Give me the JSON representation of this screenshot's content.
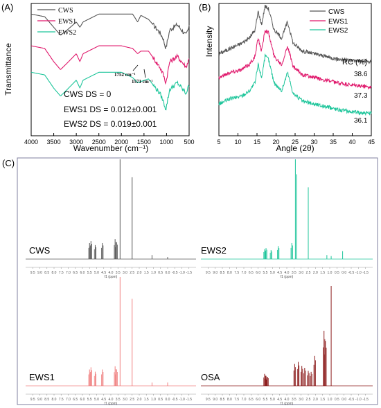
{
  "colors": {
    "CWS": "#555555",
    "EWS1": "#e0186c",
    "EWS2": "#1cc59a",
    "OSA": "#8b1a1a",
    "EWS1_nmr": "#f08080",
    "frame": "#7f7f9f"
  },
  "panel_a": {
    "label": "(A)",
    "xlabel": "Wavenumber (cm⁻¹)",
    "ylabel": "Transmittance",
    "xticks": [
      "4000",
      "3500",
      "3000",
      "2500",
      "2000",
      "1500",
      "1000",
      "500"
    ],
    "legend": [
      "CWS",
      "EWS1",
      "EWS2"
    ],
    "annotations": [
      "1752 cm⁻¹",
      "1571 cm⁻¹"
    ],
    "ds_lines": [
      "CWS DS = 0",
      "EWS1 DS = 0.012±0.001",
      "EWS2 DS = 0.019±0.001"
    ]
  },
  "panel_b": {
    "label": "(B)",
    "xlabel": "Angle (2θ)",
    "ylabel": "Intensity",
    "xticks": [
      "5",
      "10",
      "15",
      "20",
      "25",
      "30",
      "35",
      "40",
      "45"
    ],
    "legend": [
      "CWS",
      "EWS1",
      "EWS2"
    ],
    "rc_header": "RC (%)",
    "rc_values": [
      "38.6",
      "37.3",
      "36.1"
    ]
  },
  "panel_c": {
    "label": "(C)",
    "axis_title": "f1 (ppm)",
    "xticks": [
      "9.5",
      "9.0",
      "8.5",
      "8.0",
      "7.5",
      "7.0",
      "6.5",
      "6.0",
      "5.5",
      "5.0",
      "4.5",
      "4.0",
      "3.5",
      "3.0",
      "2.5",
      "2.0",
      "1.5",
      "1.0",
      "0.5",
      "0.0",
      "-0.5",
      "-1.0",
      "-1.5"
    ],
    "spectra": [
      {
        "name": "CWS"
      },
      {
        "name": "EWS2"
      },
      {
        "name": "EWS1"
      },
      {
        "name": "OSA"
      }
    ]
  },
  "chart_data": [
    {
      "type": "line",
      "title": "(A)",
      "xlabel": "Wavenumber (cm⁻¹)",
      "ylabel": "Transmittance",
      "xlim": [
        4000,
        500
      ],
      "series": [
        {
          "name": "CWS",
          "x": [
            4000,
            3700,
            3500,
            3350,
            3200,
            3000,
            2920,
            2850,
            2500,
            2000,
            1752,
            1640,
            1571,
            1400,
            1150,
            1080,
            1015,
            930,
            760,
            570,
            500
          ],
          "y": [
            0.92,
            0.9,
            0.82,
            0.76,
            0.8,
            0.86,
            0.82,
            0.86,
            0.92,
            0.92,
            0.92,
            0.86,
            0.91,
            0.88,
            0.78,
            0.74,
            0.66,
            0.8,
            0.84,
            0.76,
            0.82
          ]
        },
        {
          "name": "EWS1",
          "x": [
            4000,
            3700,
            3500,
            3350,
            3200,
            3000,
            2920,
            2850,
            2500,
            2000,
            1752,
            1640,
            1571,
            1400,
            1150,
            1080,
            1015,
            930,
            760,
            570,
            500
          ],
          "y": [
            0.68,
            0.66,
            0.56,
            0.5,
            0.55,
            0.62,
            0.56,
            0.62,
            0.68,
            0.68,
            0.66,
            0.62,
            0.64,
            0.64,
            0.52,
            0.47,
            0.4,
            0.56,
            0.6,
            0.52,
            0.58
          ]
        },
        {
          "name": "EWS2",
          "x": [
            4000,
            3700,
            3500,
            3350,
            3200,
            3000,
            2920,
            2850,
            2500,
            2000,
            1752,
            1640,
            1571,
            1400,
            1150,
            1080,
            1015,
            930,
            760,
            570,
            500
          ],
          "y": [
            0.48,
            0.46,
            0.36,
            0.3,
            0.35,
            0.42,
            0.36,
            0.42,
            0.48,
            0.48,
            0.44,
            0.4,
            0.41,
            0.43,
            0.32,
            0.27,
            0.2,
            0.35,
            0.4,
            0.32,
            0.38
          ]
        }
      ]
    },
    {
      "type": "line",
      "title": "(B)",
      "xlabel": "Angle (2θ)",
      "ylabel": "Intensity",
      "xlim": [
        5,
        45
      ],
      "series": [
        {
          "name": "CWS",
          "x": [
            5,
            8,
            11,
            13,
            14.5,
            15.3,
            16.2,
            17.1,
            18.0,
            19.5,
            21.5,
            23.0,
            24.5,
            27,
            30,
            33,
            36,
            40,
            45
          ],
          "y": [
            0.62,
            0.66,
            0.7,
            0.74,
            0.8,
            0.94,
            0.84,
            0.98,
            0.96,
            0.8,
            0.74,
            0.86,
            0.7,
            0.64,
            0.62,
            0.6,
            0.58,
            0.57,
            0.56
          ]
        },
        {
          "name": "EWS1",
          "x": [
            5,
            8,
            11,
            13,
            14.5,
            15.3,
            16.2,
            17.1,
            18.0,
            19.5,
            21.5,
            23.0,
            24.5,
            27,
            30,
            33,
            36,
            40,
            45
          ],
          "y": [
            0.44,
            0.48,
            0.5,
            0.54,
            0.6,
            0.74,
            0.64,
            0.8,
            0.78,
            0.6,
            0.54,
            0.68,
            0.52,
            0.46,
            0.44,
            0.42,
            0.4,
            0.38,
            0.37
          ]
        },
        {
          "name": "EWS2",
          "x": [
            5,
            8,
            11,
            13,
            14.5,
            15.3,
            16.2,
            17.1,
            18.0,
            19.5,
            21.5,
            23.0,
            24.5,
            27,
            30,
            33,
            36,
            40,
            45
          ],
          "y": [
            0.24,
            0.28,
            0.3,
            0.34,
            0.4,
            0.54,
            0.44,
            0.6,
            0.58,
            0.4,
            0.34,
            0.48,
            0.32,
            0.26,
            0.24,
            0.22,
            0.2,
            0.18,
            0.17
          ]
        }
      ],
      "annotations": [
        "RC (%)",
        "38.6",
        "37.3",
        "36.1"
      ]
    },
    {
      "type": "line",
      "title": "(C) CWS",
      "xlabel": "f1 (ppm)",
      "xlim": [
        10,
        -2
      ],
      "peaks": [
        {
          "ppm": 5.5,
          "h": 0.16
        },
        {
          "ppm": 5.4,
          "h": 0.18
        },
        {
          "ppm": 5.1,
          "h": 0.14
        },
        {
          "ppm": 4.6,
          "h": 0.16
        },
        {
          "ppm": 3.7,
          "h": 0.2
        },
        {
          "ppm": 3.6,
          "h": 0.17
        },
        {
          "ppm": 3.35,
          "h": 1.0
        },
        {
          "ppm": 2.5,
          "h": 0.82
        },
        {
          "ppm": 1.1,
          "h": 0.04
        },
        {
          "ppm": 0.0,
          "h": 0.02
        }
      ]
    },
    {
      "type": "line",
      "title": "(C) EWS2",
      "xlabel": "f1 (ppm)",
      "xlim": [
        10,
        -2
      ],
      "peaks": [
        {
          "ppm": 5.55,
          "h": 0.1
        },
        {
          "ppm": 5.45,
          "h": 0.11
        },
        {
          "ppm": 5.1,
          "h": 0.09
        },
        {
          "ppm": 4.6,
          "h": 0.13
        },
        {
          "ppm": 3.65,
          "h": 0.16
        },
        {
          "ppm": 3.4,
          "h": 1.0
        },
        {
          "ppm": 3.3,
          "h": 0.85
        },
        {
          "ppm": 2.5,
          "h": 0.72
        },
        {
          "ppm": 1.2,
          "h": 0.04
        },
        {
          "ppm": 0.9,
          "h": 0.03
        },
        {
          "ppm": 0.1,
          "h": 0.08
        }
      ]
    },
    {
      "type": "line",
      "title": "(C) EWS1",
      "xlabel": "f1 (ppm)",
      "xlim": [
        10,
        -2
      ],
      "peaks": [
        {
          "ppm": 5.5,
          "h": 0.15
        },
        {
          "ppm": 5.4,
          "h": 0.17
        },
        {
          "ppm": 5.1,
          "h": 0.13
        },
        {
          "ppm": 4.6,
          "h": 0.15
        },
        {
          "ppm": 3.7,
          "h": 0.18
        },
        {
          "ppm": 3.6,
          "h": 0.15
        },
        {
          "ppm": 3.35,
          "h": 1.0
        },
        {
          "ppm": 2.5,
          "h": 0.8
        },
        {
          "ppm": 1.1,
          "h": 0.03
        },
        {
          "ppm": 0.0,
          "h": 0.03
        }
      ]
    },
    {
      "type": "line",
      "title": "(C) OSA",
      "xlabel": "f1 (ppm)",
      "xlim": [
        10,
        -2
      ],
      "peaks": [
        {
          "ppm": 5.55,
          "h": 0.12
        },
        {
          "ppm": 5.45,
          "h": 0.1
        },
        {
          "ppm": 5.35,
          "h": 0.09
        },
        {
          "ppm": 3.45,
          "h": 0.22
        },
        {
          "ppm": 3.2,
          "h": 0.24
        },
        {
          "ppm": 2.95,
          "h": 0.2
        },
        {
          "ppm": 2.75,
          "h": 0.18
        },
        {
          "ppm": 2.5,
          "h": 0.15
        },
        {
          "ppm": 2.3,
          "h": 0.14
        },
        {
          "ppm": 2.05,
          "h": 0.3
        },
        {
          "ppm": 1.4,
          "h": 0.55
        },
        {
          "ppm": 1.3,
          "h": 0.45
        },
        {
          "ppm": 0.9,
          "h": 1.0
        }
      ]
    }
  ]
}
